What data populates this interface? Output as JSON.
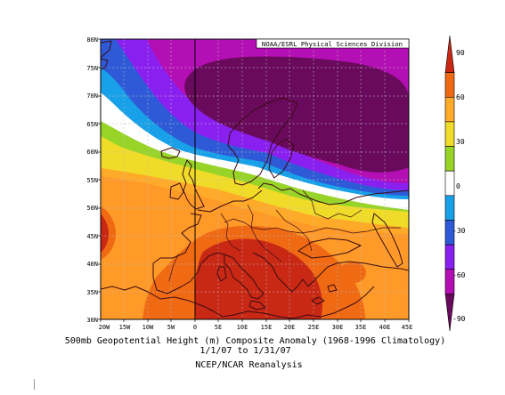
{
  "credit": "NOAA/ESRL Physical Sciences Division",
  "captions": {
    "line1": "500mb Geopotential Height (m) Composite Anomaly (1968-1996 Climatology)",
    "line2": "1/1/07  to 1/31/07",
    "line3": "NCEP/NCAR Reanalysis"
  },
  "map": {
    "lat_labels": [
      "80N",
      "75N",
      "70N",
      "65N",
      "60N",
      "55N",
      "50N",
      "45N",
      "40N",
      "35N",
      "30N"
    ],
    "lon_labels": [
      "20W",
      "15W",
      "10W",
      "5W",
      "0",
      "5E",
      "10E",
      "15E",
      "20E",
      "25E",
      "30E",
      "35E",
      "40E",
      "45E"
    ]
  },
  "colorbar": {
    "colors": [
      "#6a0a5c",
      "#b40fb4",
      "#8a20f0",
      "#2e5ad8",
      "#18a0e8",
      "#ffffff",
      "#98d428",
      "#f0dc28",
      "#ffaa28",
      "#f06a14",
      "#c82814"
    ],
    "tick_labels": [
      "90",
      "60",
      "30",
      "0",
      "-30",
      "-60",
      "-90"
    ]
  },
  "colors": {
    "coastline": "#3a0c14",
    "gridline": "#bbbbbb"
  }
}
